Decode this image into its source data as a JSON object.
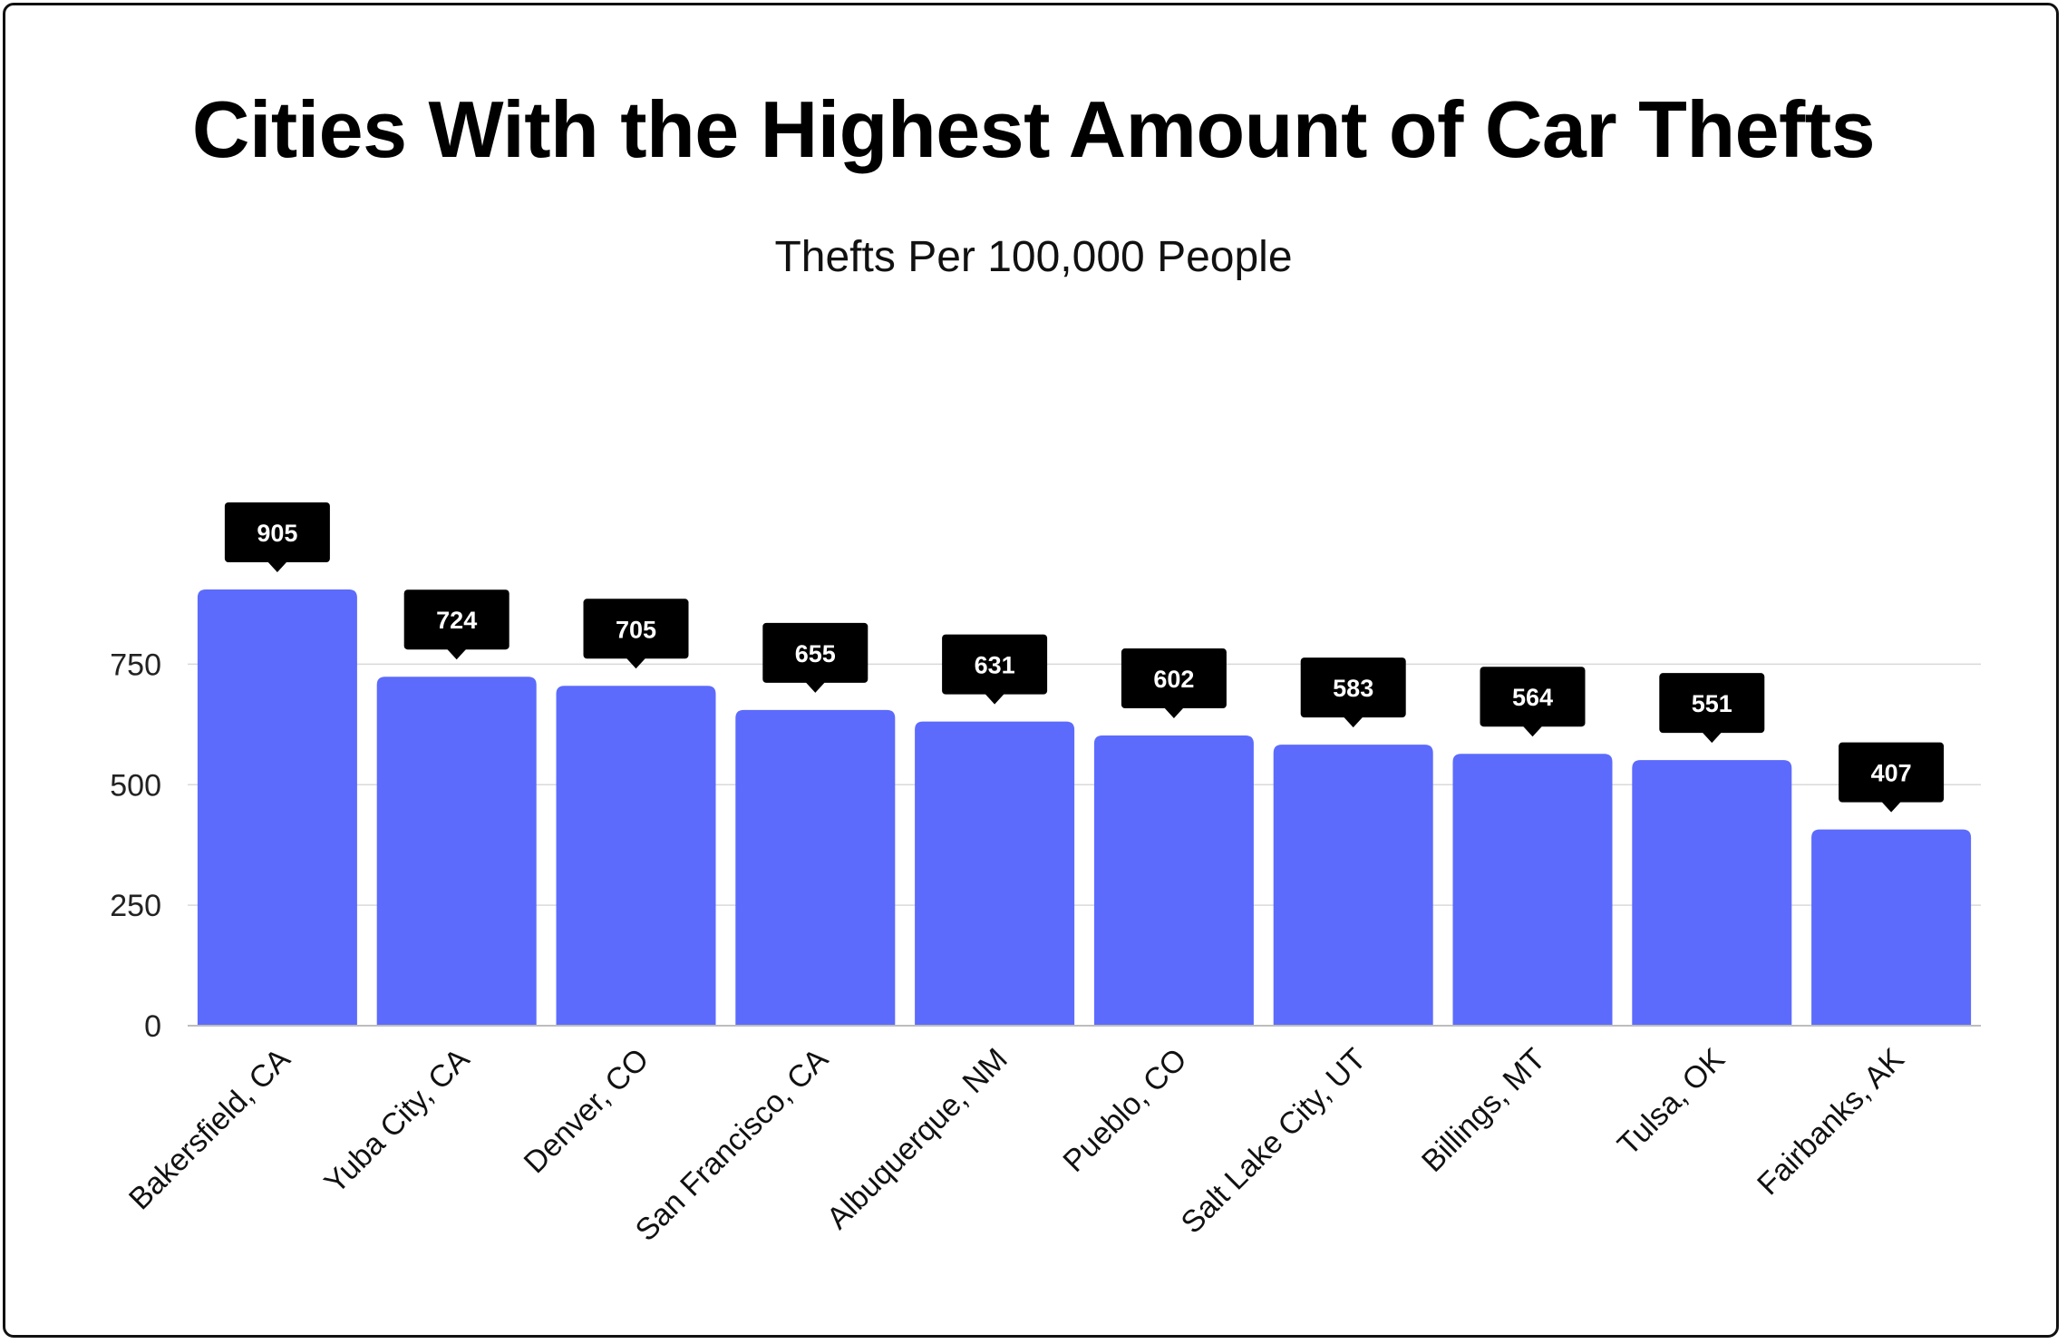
{
  "chart_data": {
    "type": "bar",
    "title": "Cities With the Highest Amount of Car Thefts",
    "subtitle": "Thefts Per 100,000 People",
    "xlabel": "",
    "ylabel": "",
    "categories": [
      "Bakersfield, CA",
      "Yuba City, CA",
      "Denver, CO",
      "San Francisco, CA",
      "Albuquerque, NM",
      "Pueblo, CO",
      "Salt Lake City, UT",
      "Billings, MT",
      "Tulsa, OK",
      "Fairbanks, AK"
    ],
    "values": [
      905,
      724,
      705,
      655,
      631,
      602,
      583,
      564,
      551,
      407
    ],
    "data_labels": [
      "905",
      "724",
      "705",
      "655",
      "631",
      "602",
      "583",
      "564",
      "551",
      "407"
    ],
    "ylim": [
      0,
      905
    ],
    "yticks": [
      0,
      250,
      500,
      750
    ],
    "ytick_labels": [
      "0",
      "250",
      "500",
      "750"
    ],
    "grid": true,
    "legend": "none",
    "colors": {
      "bar": "#5c6bfc",
      "label_box": "#000000",
      "label_text": "#ffffff",
      "grid": "#d9d9d9",
      "axis": "#bdbdbd"
    }
  }
}
